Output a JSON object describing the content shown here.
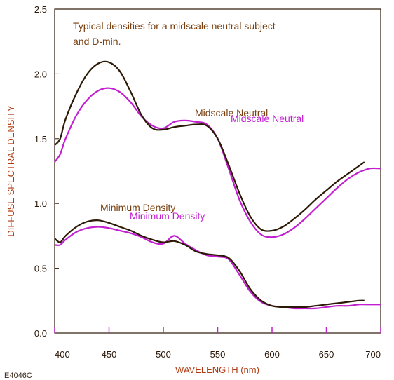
{
  "figure_code": "E4046C",
  "colors": {
    "brown": "#7a3f0f",
    "dark_brown": "#2d1a06",
    "magenta": "#c21fd0",
    "axis": "#2a1606"
  },
  "chart_data": {
    "type": "line",
    "annotation": [
      "Typical densities for a midscale neutral subject",
      "and D-min."
    ],
    "xlabel": "WAVELENGTH (nm)",
    "ylabel": "DIFFUSE SPECTRAL DENSITY",
    "xlim": [
      400,
      700
    ],
    "ylim": [
      0.0,
      2.5
    ],
    "x_ticks": [
      "400",
      "450",
      "500",
      "550",
      "600",
      "650",
      "700"
    ],
    "y_ticks": [
      "0.0",
      "0.5",
      "1.0",
      "1.5",
      "2.0",
      "2.5"
    ],
    "grid": false,
    "series": [
      {
        "name": "Midscale Neutral",
        "color": "#2d1a06",
        "x": [
          400,
          405,
          410,
          420,
          430,
          440,
          450,
          460,
          470,
          480,
          490,
          500,
          510,
          520,
          530,
          540,
          550,
          560,
          570,
          580,
          590,
          600,
          610,
          620,
          630,
          640,
          650,
          660,
          670,
          680,
          685
        ],
        "y": [
          1.45,
          1.5,
          1.65,
          1.85,
          2.0,
          2.08,
          2.09,
          2.02,
          1.86,
          1.68,
          1.58,
          1.57,
          1.59,
          1.6,
          1.61,
          1.6,
          1.5,
          1.3,
          1.08,
          0.9,
          0.8,
          0.79,
          0.82,
          0.88,
          0.95,
          1.03,
          1.1,
          1.17,
          1.23,
          1.29,
          1.32
        ]
      },
      {
        "name": "Midscale Neutral",
        "color": "#c21fd0",
        "x": [
          400,
          405,
          410,
          420,
          430,
          440,
          450,
          460,
          470,
          480,
          490,
          500,
          510,
          520,
          530,
          540,
          550,
          560,
          570,
          580,
          590,
          600,
          610,
          620,
          630,
          640,
          650,
          660,
          670,
          680,
          690,
          700
        ],
        "y": [
          1.32,
          1.38,
          1.5,
          1.68,
          1.8,
          1.87,
          1.89,
          1.86,
          1.78,
          1.67,
          1.6,
          1.58,
          1.63,
          1.64,
          1.63,
          1.61,
          1.5,
          1.27,
          1.03,
          0.86,
          0.76,
          0.74,
          0.76,
          0.81,
          0.88,
          0.96,
          1.04,
          1.12,
          1.19,
          1.24,
          1.27,
          1.27
        ]
      },
      {
        "name": "Minimum Density",
        "color": "#2d1a06",
        "x": [
          400,
          405,
          410,
          420,
          430,
          440,
          450,
          460,
          470,
          480,
          490,
          500,
          510,
          520,
          530,
          540,
          550,
          560,
          570,
          580,
          590,
          600,
          610,
          620,
          630,
          640,
          650,
          660,
          670,
          680,
          685
        ],
        "y": [
          0.73,
          0.7,
          0.75,
          0.82,
          0.86,
          0.87,
          0.85,
          0.82,
          0.79,
          0.75,
          0.72,
          0.7,
          0.71,
          0.68,
          0.63,
          0.61,
          0.6,
          0.58,
          0.48,
          0.34,
          0.25,
          0.21,
          0.2,
          0.2,
          0.2,
          0.21,
          0.22,
          0.23,
          0.24,
          0.25,
          0.25
        ]
      },
      {
        "name": "Minimum Density",
        "color": "#c21fd0",
        "x": [
          400,
          405,
          410,
          420,
          430,
          440,
          450,
          460,
          470,
          480,
          490,
          500,
          510,
          520,
          530,
          540,
          550,
          560,
          570,
          580,
          590,
          600,
          610,
          620,
          630,
          640,
          650,
          660,
          670,
          680,
          690,
          700
        ],
        "y": [
          0.68,
          0.68,
          0.72,
          0.78,
          0.81,
          0.82,
          0.81,
          0.79,
          0.77,
          0.74,
          0.7,
          0.69,
          0.75,
          0.69,
          0.64,
          0.6,
          0.59,
          0.57,
          0.45,
          0.32,
          0.24,
          0.21,
          0.2,
          0.19,
          0.19,
          0.19,
          0.2,
          0.21,
          0.21,
          0.22,
          0.22,
          0.22
        ]
      }
    ]
  }
}
